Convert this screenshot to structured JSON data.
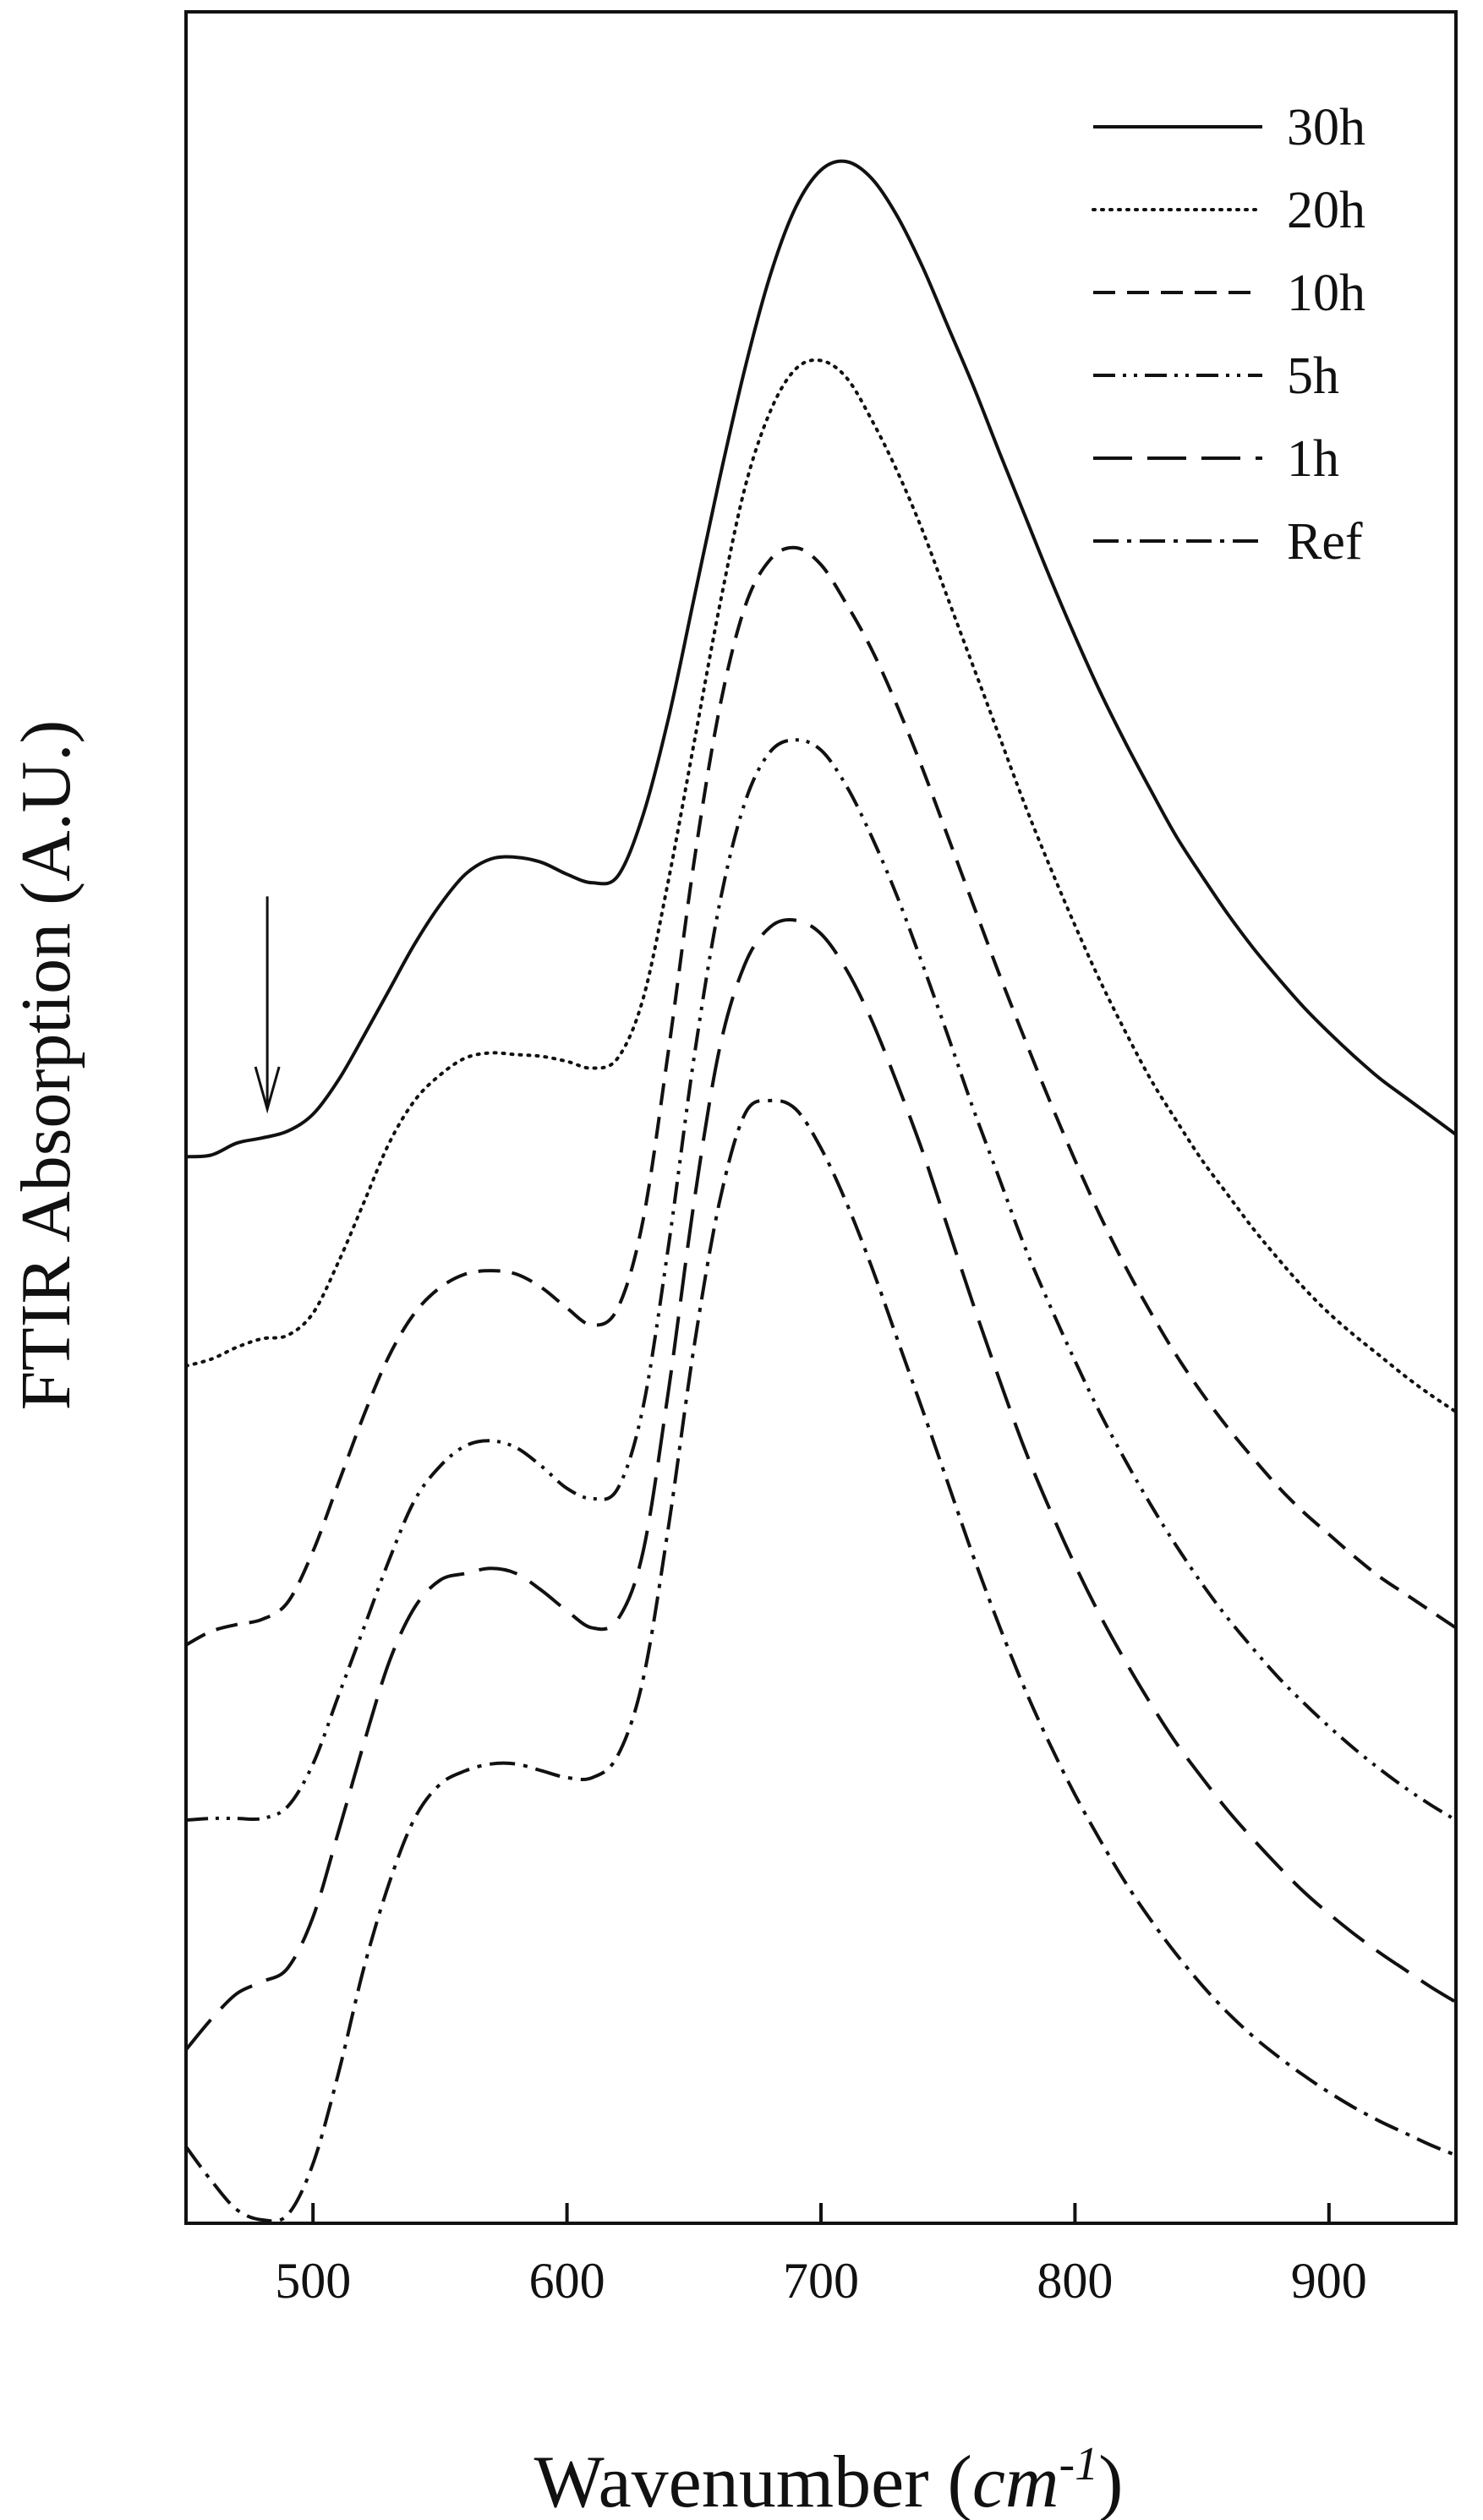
{
  "chart_data": {
    "type": "line",
    "title": "",
    "xlabel": "Wavenumber (",
    "xlabel_unit_base": "cm",
    "xlabel_unit_exp": "-1",
    "xlabel_close": ")",
    "ylabel": "FTIR Absorption (A.U.)",
    "xlim": [
      450,
      950
    ],
    "ylim": [
      0,
      13
    ],
    "x_ticks": [
      500,
      600,
      700,
      800,
      900
    ],
    "y_ticks": [],
    "grid": false,
    "legend_position": "top-right",
    "annotation": {
      "type": "arrow",
      "label": "",
      "x": 482,
      "y_from": 7.8,
      "y_to": 6.55
    },
    "x": [
      450,
      460,
      470,
      480,
      490,
      500,
      510,
      520,
      530,
      540,
      550,
      560,
      570,
      580,
      590,
      600,
      610,
      620,
      630,
      640,
      650,
      660,
      670,
      680,
      690,
      700,
      710,
      720,
      730,
      740,
      750,
      760,
      770,
      780,
      790,
      800,
      810,
      820,
      830,
      840,
      850,
      860,
      870,
      880,
      890,
      900,
      910,
      920,
      930,
      940,
      950
    ],
    "series": [
      {
        "name": "30h",
        "style": "solid",
        "values": [
          6.27,
          6.28,
          6.35,
          6.38,
          6.42,
          6.52,
          6.72,
          6.98,
          7.25,
          7.52,
          7.75,
          7.93,
          8.02,
          8.03,
          8.0,
          7.93,
          7.88,
          7.92,
          8.28,
          8.85,
          9.55,
          10.25,
          10.9,
          11.45,
          11.85,
          12.07,
          12.12,
          12.02,
          11.8,
          11.5,
          11.15,
          10.8,
          10.42,
          10.05,
          9.68,
          9.33,
          9.0,
          8.7,
          8.42,
          8.15,
          7.92,
          7.7,
          7.5,
          7.32,
          7.15,
          7.0,
          6.86,
          6.73,
          6.62,
          6.51,
          6.4
        ]
      },
      {
        "name": "20h",
        "style": "dotted",
        "values": [
          5.04,
          5.08,
          5.15,
          5.2,
          5.22,
          5.35,
          5.65,
          6.0,
          6.35,
          6.6,
          6.75,
          6.85,
          6.88,
          6.87,
          6.86,
          6.83,
          6.79,
          6.85,
          7.2,
          7.9,
          8.7,
          9.5,
          10.2,
          10.65,
          10.9,
          10.95,
          10.85,
          10.6,
          10.3,
          9.95,
          9.55,
          9.15,
          8.75,
          8.35,
          7.98,
          7.63,
          7.3,
          7.0,
          6.72,
          6.48,
          6.25,
          6.05,
          5.85,
          5.67,
          5.5,
          5.35,
          5.22,
          5.1,
          4.98,
          4.87,
          4.77
        ]
      },
      {
        "name": "10h",
        "style": "dashed",
        "values": [
          3.4,
          3.48,
          3.52,
          3.55,
          3.65,
          3.95,
          4.35,
          4.75,
          5.1,
          5.35,
          5.5,
          5.58,
          5.6,
          5.58,
          5.5,
          5.38,
          5.28,
          5.38,
          5.9,
          6.9,
          8.0,
          8.9,
          9.5,
          9.78,
          9.85,
          9.75,
          9.52,
          9.25,
          8.92,
          8.55,
          8.15,
          7.75,
          7.35,
          6.97,
          6.6,
          6.25,
          5.92,
          5.62,
          5.35,
          5.1,
          4.88,
          4.68,
          4.5,
          4.33,
          4.18,
          4.05,
          3.92,
          3.8,
          3.7,
          3.6,
          3.5
        ]
      },
      {
        "name": "5h",
        "style": "dash-dot-dot",
        "values": [
          2.37,
          2.38,
          2.38,
          2.38,
          2.45,
          2.7,
          3.1,
          3.5,
          3.9,
          4.25,
          4.45,
          4.57,
          4.6,
          4.56,
          4.45,
          4.32,
          4.26,
          4.32,
          4.8,
          5.75,
          6.85,
          7.75,
          8.35,
          8.65,
          8.72,
          8.66,
          8.45,
          8.15,
          7.8,
          7.4,
          6.98,
          6.55,
          6.15,
          5.75,
          5.4,
          5.07,
          4.76,
          4.48,
          4.22,
          3.98,
          3.76,
          3.56,
          3.38,
          3.21,
          3.06,
          2.92,
          2.79,
          2.67,
          2.56,
          2.46,
          2.37
        ]
      },
      {
        "name": "1h",
        "style": "long-dash",
        "values": [
          1.02,
          1.2,
          1.35,
          1.42,
          1.5,
          1.8,
          2.3,
          2.82,
          3.3,
          3.62,
          3.78,
          3.82,
          3.85,
          3.82,
          3.72,
          3.6,
          3.5,
          3.55,
          3.95,
          4.9,
          6.0,
          6.9,
          7.4,
          7.62,
          7.66,
          7.58,
          7.37,
          7.07,
          6.7,
          6.3,
          5.85,
          5.4,
          4.97,
          4.56,
          4.2,
          3.87,
          3.57,
          3.3,
          3.05,
          2.82,
          2.62,
          2.43,
          2.26,
          2.1,
          1.95,
          1.82,
          1.7,
          1.59,
          1.49,
          1.39,
          1.3
        ]
      },
      {
        "name": "Ref",
        "style": "dash-dot",
        "values": [
          0.45,
          0.25,
          0.08,
          0.02,
          0.05,
          0.35,
          0.88,
          1.5,
          2.0,
          2.38,
          2.58,
          2.66,
          2.7,
          2.7,
          2.66,
          2.62,
          2.62,
          2.75,
          3.2,
          4.1,
          5.15,
          6.0,
          6.52,
          6.6,
          6.55,
          6.32,
          6.0,
          5.62,
          5.2,
          4.78,
          4.35,
          3.92,
          3.52,
          3.15,
          2.82,
          2.52,
          2.25,
          2.0,
          1.78,
          1.58,
          1.4,
          1.24,
          1.1,
          0.98,
          0.87,
          0.77,
          0.68,
          0.6,
          0.53,
          0.46,
          0.4
        ]
      }
    ]
  }
}
